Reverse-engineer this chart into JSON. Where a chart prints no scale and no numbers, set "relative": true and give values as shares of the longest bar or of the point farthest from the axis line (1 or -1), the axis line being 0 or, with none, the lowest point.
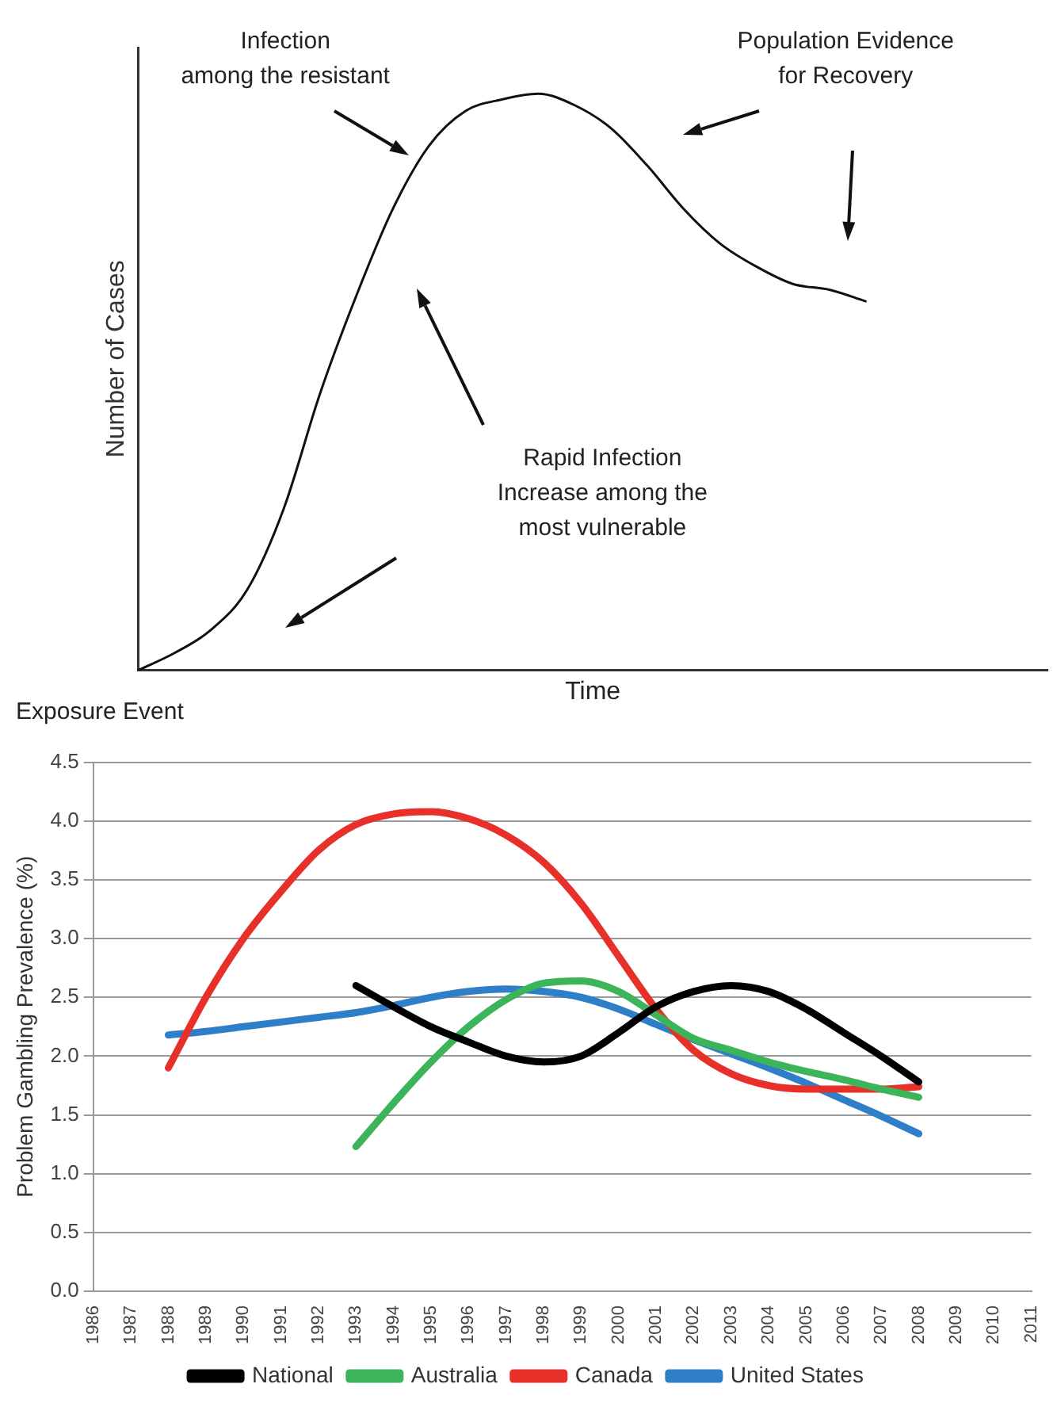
{
  "chart_data": [
    {
      "type": "line",
      "xlabel": "Time",
      "ylabel": "Number of Cases",
      "relative": true,
      "tick_labels": false,
      "grid": false,
      "legend": false,
      "marker": "none",
      "categories": [
        null,
        null,
        null,
        null,
        null,
        null,
        null,
        null,
        null,
        null,
        null,
        null,
        null,
        null,
        null,
        null,
        null,
        null,
        null,
        null,
        null,
        null,
        null,
        null,
        null,
        null
      ],
      "series": [
        {
          "color": "#111111",
          "values": [
            0,
            0.03,
            0.07,
            0.14,
            0.28,
            0.48,
            0.65,
            0.8,
            0.91,
            0.97,
            0.99,
            1,
            0.98,
            0.94,
            0.875,
            0.8,
            0.74,
            0.7,
            0.67,
            0.66,
            0.64,
            null,
            null,
            null,
            null,
            null
          ]
        }
      ],
      "annotations": [
        "Infection\namong the resistant",
        "Population Evidence\nfor Recovery",
        "Rapid Infection\nIncrease among the\nmost vulnerable",
        "Exposure Event"
      ]
    },
    {
      "type": "line",
      "ylabel": "Problem Gambling Prevalence (%)",
      "grid": "y",
      "legend": "bottom",
      "marker": "none",
      "categories": [
        "1986",
        "1987",
        "1988",
        "1989",
        "1990",
        "1991",
        "1992",
        "1993",
        "1994",
        "1995",
        "1996",
        "1997",
        "1998",
        "1999",
        "2000",
        "2001",
        "2002",
        "2003",
        "2004",
        "2005",
        "2006",
        "2007",
        "2008",
        "2009",
        "2010",
        "2011"
      ],
      "ylim": [
        0,
        4.5
      ],
      "yticks": [
        {
          "value": 0,
          "label": "0.0"
        },
        {
          "value": 0.5,
          "label": "0.5"
        },
        {
          "value": 1,
          "label": "1.0"
        },
        {
          "value": 1.5,
          "label": "1.5"
        },
        {
          "value": 2,
          "label": "2.0"
        },
        {
          "value": 2.5,
          "label": "2.5"
        },
        {
          "value": 3,
          "label": "3.0"
        },
        {
          "value": 3.5,
          "label": "3.5"
        },
        {
          "value": 4,
          "label": "4.0"
        },
        {
          "value": 4.5,
          "label": "4.5"
        }
      ],
      "series": [
        {
          "name": "National",
          "color": "#000000",
          "values": [
            null,
            null,
            null,
            null,
            null,
            null,
            null,
            2.6,
            2.42,
            2.25,
            2.12,
            2.0,
            1.95,
            2.0,
            2.2,
            2.42,
            2.55,
            2.6,
            2.55,
            2.4,
            2.2,
            2.0,
            1.78,
            null,
            null,
            null
          ]
        },
        {
          "name": "Australia",
          "color": "#3cb55a",
          "values": [
            null,
            null,
            null,
            null,
            null,
            null,
            null,
            1.23,
            1.6,
            1.95,
            2.25,
            2.48,
            2.62,
            2.64,
            2.55,
            2.35,
            2.15,
            2.05,
            1.95,
            1.87,
            1.8,
            1.72,
            1.65,
            null,
            null,
            null
          ]
        },
        {
          "name": "Canada",
          "color": "#e8302a",
          "values": [
            null,
            null,
            1.9,
            2.5,
            3.0,
            3.4,
            3.75,
            3.97,
            4.06,
            4.08,
            4.02,
            3.88,
            3.65,
            3.3,
            2.85,
            2.4,
            2.05,
            1.85,
            1.75,
            1.72,
            1.72,
            1.72,
            1.74,
            null,
            null,
            null
          ]
        },
        {
          "name": "United States",
          "color": "#2f7fc8",
          "values": [
            null,
            null,
            2.18,
            2.21,
            2.25,
            2.29,
            2.33,
            2.37,
            2.43,
            2.5,
            2.55,
            2.57,
            2.55,
            2.5,
            2.4,
            2.27,
            2.14,
            2.02,
            1.9,
            1.77,
            1.63,
            1.49,
            1.34,
            null,
            null,
            null
          ]
        }
      ]
    }
  ]
}
